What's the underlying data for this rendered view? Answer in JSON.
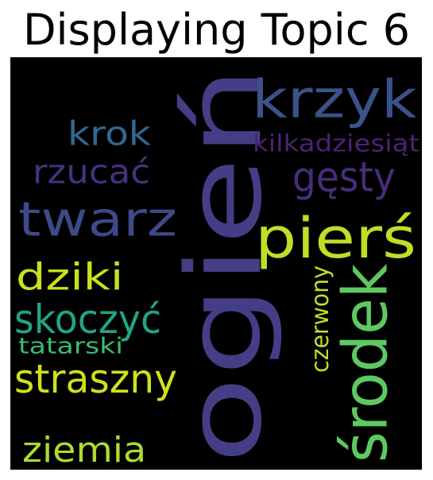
{
  "title": "Displaying Topic 6",
  "wordcloud": {
    "words": [
      {
        "text": "ogień",
        "color": "#433e85",
        "vertical": true
      },
      {
        "text": "krzyk",
        "color": "#3b528b",
        "vertical": false
      },
      {
        "text": "krok",
        "color": "#31688e",
        "vertical": false
      },
      {
        "text": "kilkadziesiąt",
        "color": "#482475",
        "vertical": false
      },
      {
        "text": "rzucać",
        "color": "#46327e",
        "vertical": false
      },
      {
        "text": "gęsty",
        "color": "#472d7b",
        "vertical": false
      },
      {
        "text": "twarz",
        "color": "#3e4989",
        "vertical": false
      },
      {
        "text": "pierś",
        "color": "#bddf26",
        "vertical": false
      },
      {
        "text": "dziki",
        "color": "#c8e020",
        "vertical": false
      },
      {
        "text": "środek",
        "color": "#5ec962",
        "vertical": true
      },
      {
        "text": "skoczyć",
        "color": "#21a585",
        "vertical": false
      },
      {
        "text": "czerwony",
        "color": "#c0df25",
        "vertical": true
      },
      {
        "text": "tatarski",
        "color": "#3dbc74",
        "vertical": false
      },
      {
        "text": "straszny",
        "color": "#d0e11c",
        "vertical": false
      },
      {
        "text": "ziemia",
        "color": "#addc30",
        "vertical": false
      }
    ]
  }
}
